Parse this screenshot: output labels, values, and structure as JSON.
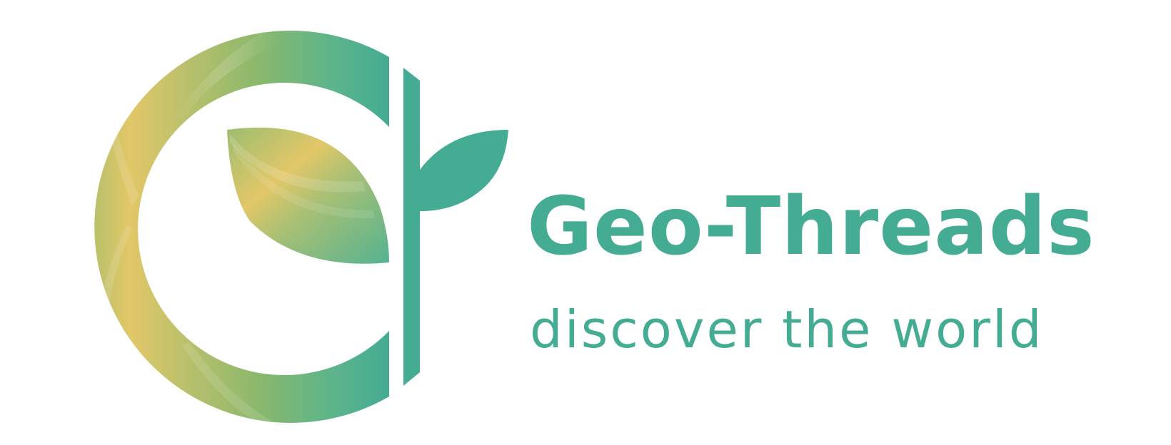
{
  "brand": {
    "name": "Geo-Threads",
    "tagline": "discover the world"
  },
  "colors": {
    "primary": "#44ac93",
    "gradient_yellow": "#e2c768",
    "gradient_olive": "#b8c06c",
    "gradient_green": "#86b86c",
    "background": "#ffffff"
  },
  "icons": {
    "mark": "c-letter-with-leaf-sprout-icon"
  }
}
